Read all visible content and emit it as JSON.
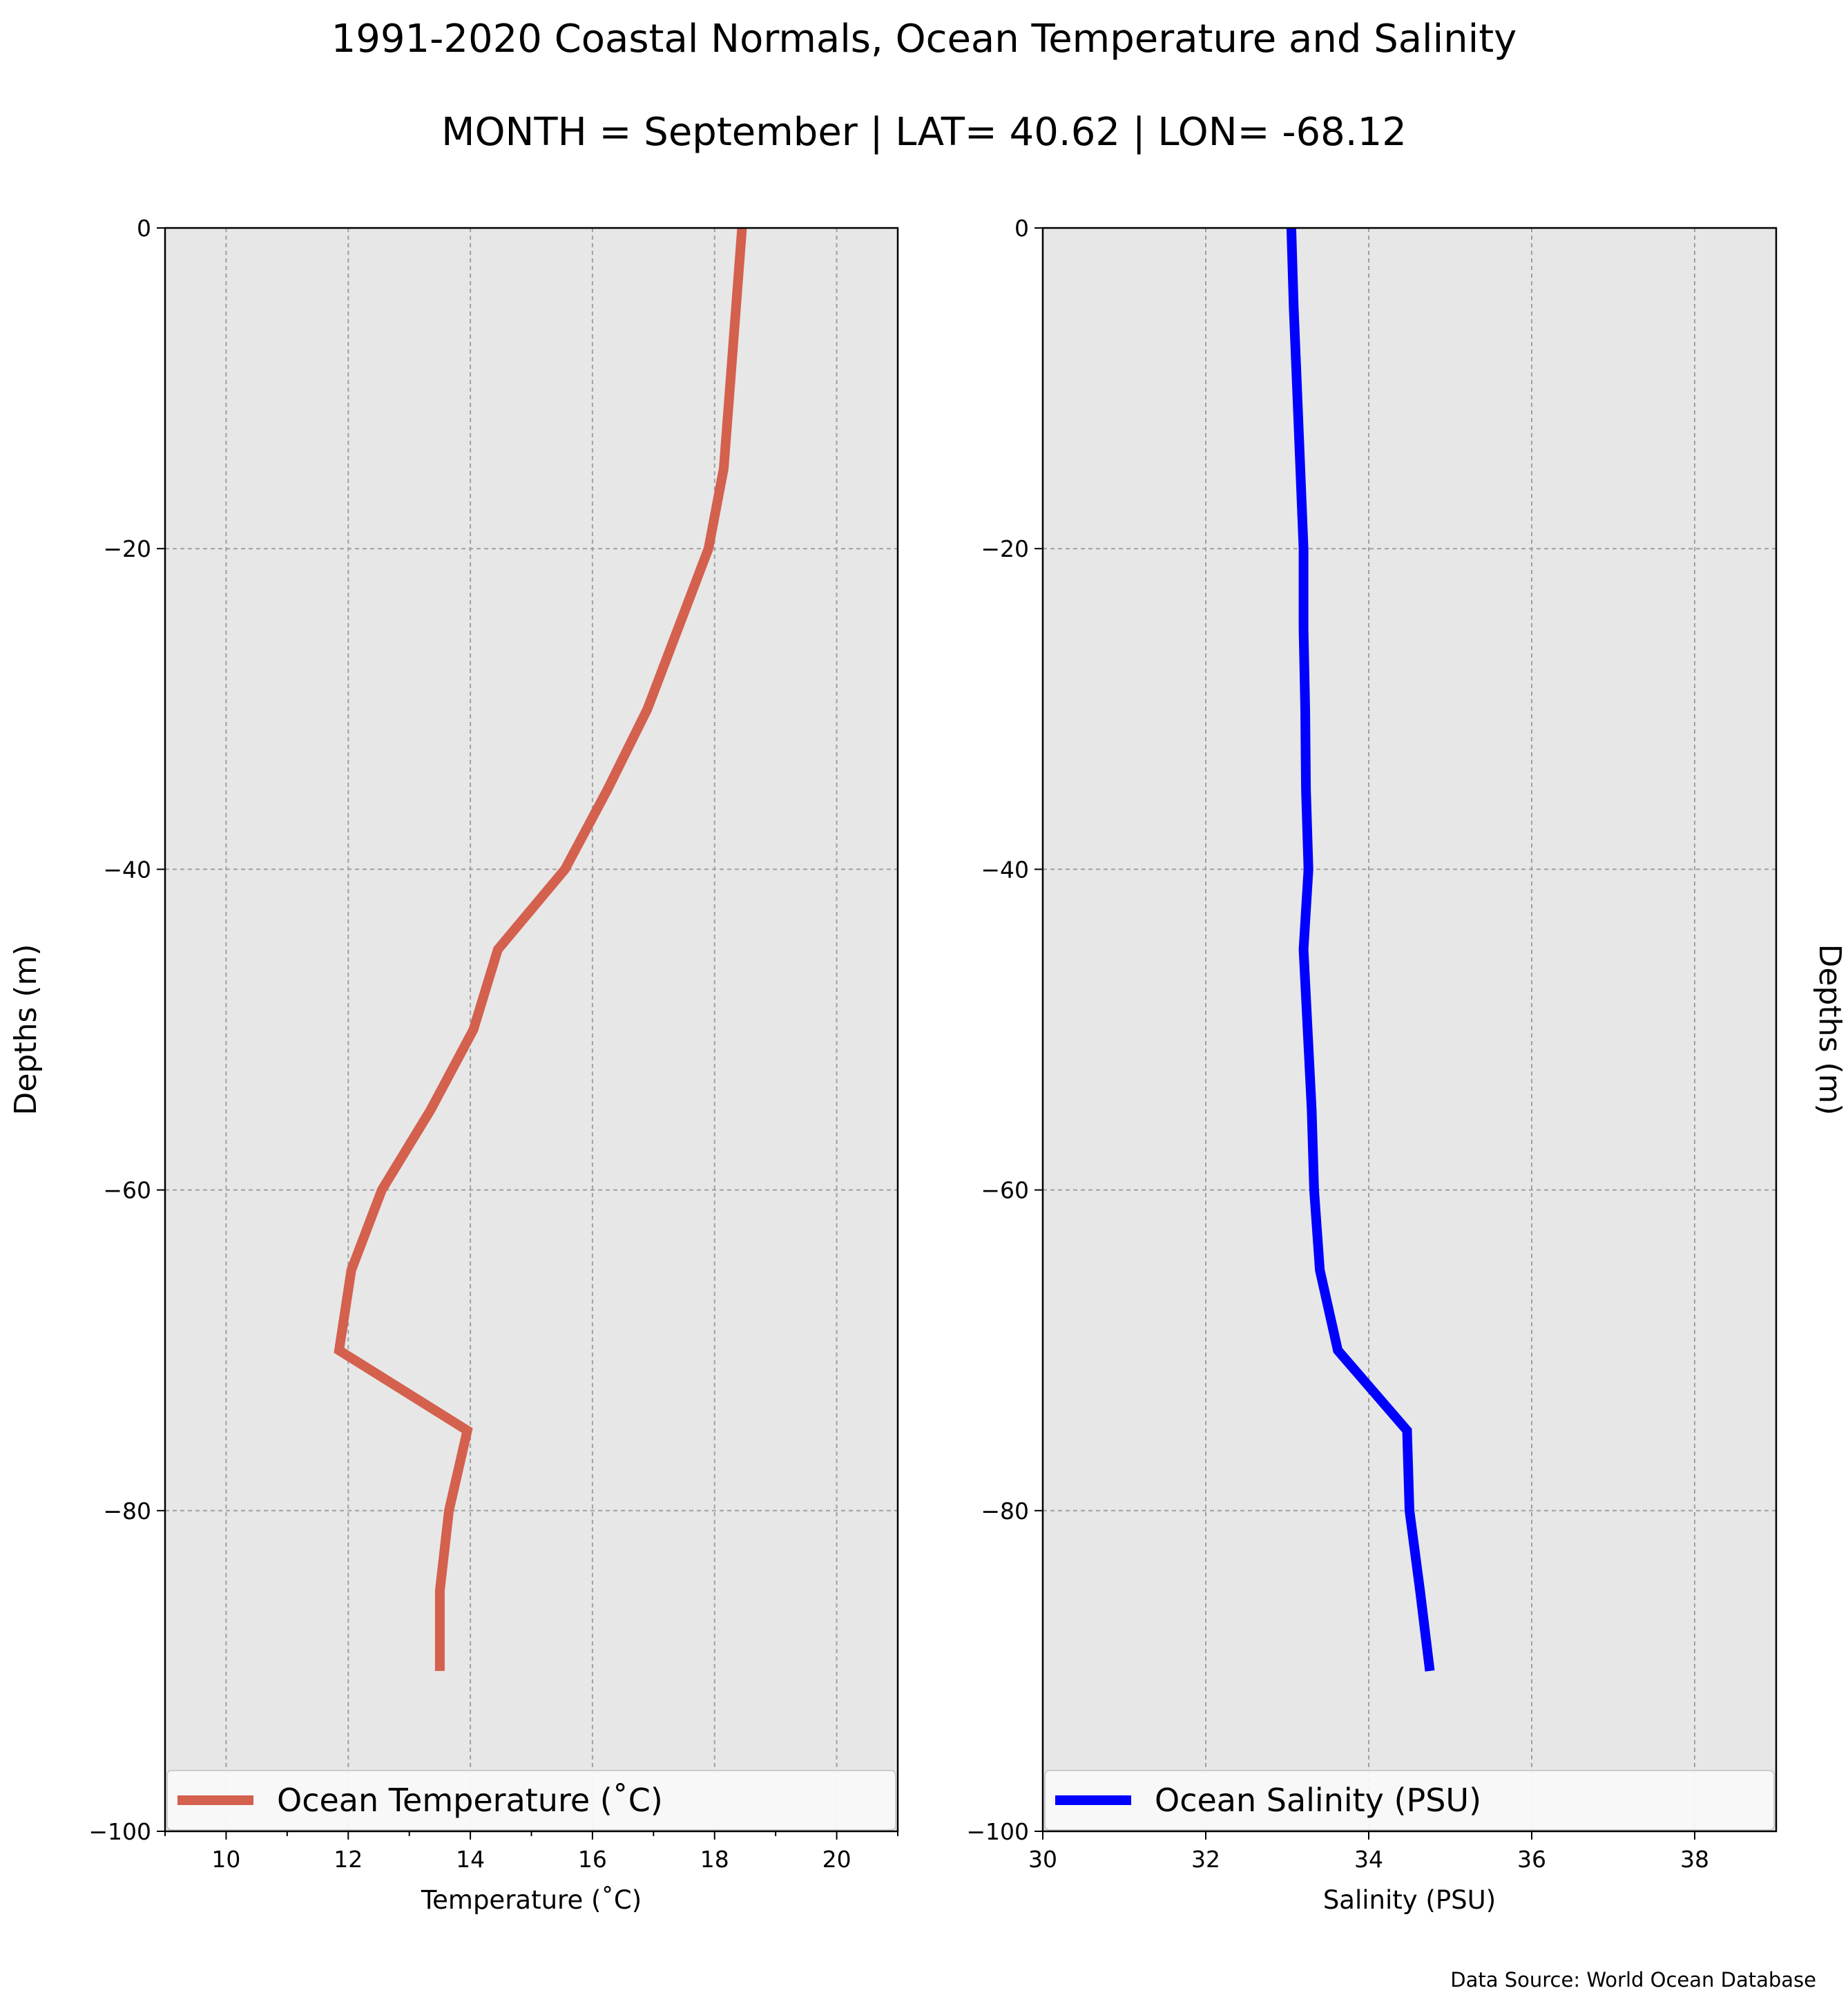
{
  "title": "1991-2020 Coastal Normals, Ocean Temperature and Salinity",
  "subtitle": "MONTH = September | LAT= 40.62 | LON= -68.12",
  "source": "Data Source: World Ocean Database",
  "chart_data": [
    {
      "type": "line",
      "xlabel": "Temperature ($^\\circ$C)",
      "xlabel_text": "Temperature (˚C)",
      "ylabel": "Depths (m)",
      "xlim": [
        9,
        21
      ],
      "ylim": [
        -100,
        0
      ],
      "xticks": [
        10,
        12,
        14,
        16,
        18,
        20
      ],
      "yticks": [
        0,
        -20,
        -40,
        -60,
        -80,
        -100
      ],
      "ytick_labels": [
        "0",
        "−20",
        "−40",
        "−60",
        "−80",
        "−100"
      ],
      "grid": true,
      "legend_position": "lower-center",
      "color": "#d4604e",
      "series": [
        {
          "name": "Ocean Temperature (˚C)",
          "x": [
            18.45,
            18.35,
            18.25,
            18.15,
            17.9,
            17.4,
            16.9,
            16.25,
            15.55,
            14.45,
            14.05,
            13.35,
            12.55,
            12.05,
            11.85,
            13.95,
            13.65,
            13.5,
            13.5
          ],
          "y": [
            0,
            -5,
            -10,
            -15,
            -20,
            -25,
            -30,
            -35,
            -40,
            -45,
            -50,
            -55,
            -60,
            -65,
            -70,
            -75,
            -80,
            -85,
            -90
          ]
        }
      ]
    },
    {
      "type": "line",
      "xlabel": "Salinity (PSU)",
      "ylabel": "Depths (m)",
      "xlim": [
        30,
        39
      ],
      "ylim": [
        -100,
        0
      ],
      "xticks": [
        30,
        32,
        34,
        36,
        38
      ],
      "yticks": [
        0,
        -20,
        -40,
        -60,
        -80,
        -100
      ],
      "ytick_labels": [
        "0",
        "−20",
        "−40",
        "−60",
        "−80",
        "−100"
      ],
      "grid": true,
      "legend_position": "lower-center",
      "color": "#0000ff",
      "series": [
        {
          "name": "Ocean Salinity (PSU)",
          "x": [
            33.05,
            33.08,
            33.12,
            33.16,
            33.2,
            33.2,
            33.22,
            33.23,
            33.26,
            33.2,
            33.25,
            33.3,
            33.33,
            33.4,
            33.62,
            34.47,
            34.5,
            34.63,
            34.75
          ],
          "y": [
            0,
            -5,
            -10,
            -15,
            -20,
            -25,
            -30,
            -35,
            -40,
            -45,
            -50,
            -55,
            -60,
            -65,
            -70,
            -75,
            -80,
            -85,
            -90
          ]
        }
      ]
    }
  ]
}
